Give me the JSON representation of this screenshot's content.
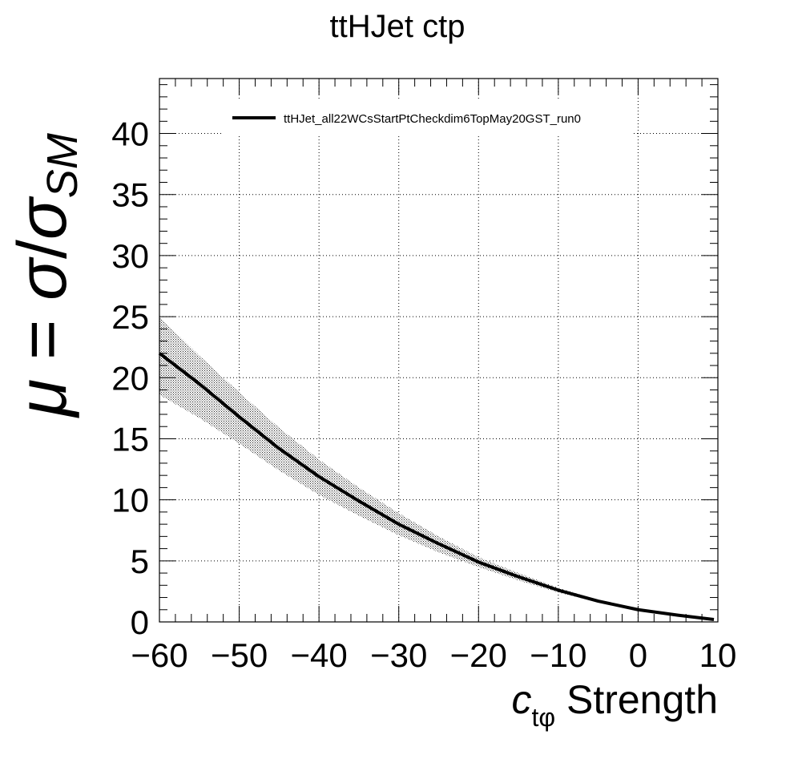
{
  "chart_data": {
    "type": "line",
    "title": "ttHJet ctp",
    "xlabel": {
      "main": "c",
      "sub": "tφ",
      "suffix": " Strength"
    },
    "ylabel": {
      "mu": "μ",
      "eq": " = ",
      "sigma": "σ",
      "slash": "/",
      "sigma2": "σ",
      "sub": "SM"
    },
    "xlim": [
      -60,
      10
    ],
    "ylim": [
      0,
      44.5
    ],
    "xticks": [
      -60,
      -50,
      -40,
      -30,
      -20,
      -10,
      0,
      10
    ],
    "xtick_labels": [
      "−60",
      "−50",
      "−40",
      "−30",
      "−20",
      "−10",
      "0",
      "10"
    ],
    "yticks": [
      0,
      5,
      10,
      15,
      20,
      25,
      30,
      35,
      40
    ],
    "ytick_labels": [
      "0",
      "5",
      "10",
      "15",
      "20",
      "25",
      "30",
      "35",
      "40"
    ],
    "grid": true,
    "legend_position": "top",
    "series": [
      {
        "name": "ttHJet_all22WCsStartPtCheckdim6TopMay20GST_run0",
        "color": "#000000",
        "x": [
          -60,
          -55,
          -50,
          -45,
          -40,
          -35,
          -30,
          -25,
          -20,
          -15,
          -10,
          -5,
          0,
          5,
          9.5
        ],
        "y": [
          22.0,
          19.5,
          16.8,
          14.2,
          11.9,
          9.9,
          8.0,
          6.4,
          4.9,
          3.7,
          2.6,
          1.7,
          1.0,
          0.55,
          0.2
        ],
        "band_upper": [
          25.0,
          21.8,
          18.8,
          15.9,
          13.3,
          11.0,
          8.9,
          7.0,
          5.3,
          4.0,
          2.8,
          1.8,
          1.05,
          0.6,
          0.25
        ],
        "band_lower": [
          18.6,
          16.7,
          14.6,
          12.4,
          10.4,
          8.7,
          7.1,
          5.7,
          4.5,
          3.4,
          2.4,
          1.6,
          0.95,
          0.5,
          0.15
        ]
      }
    ]
  }
}
